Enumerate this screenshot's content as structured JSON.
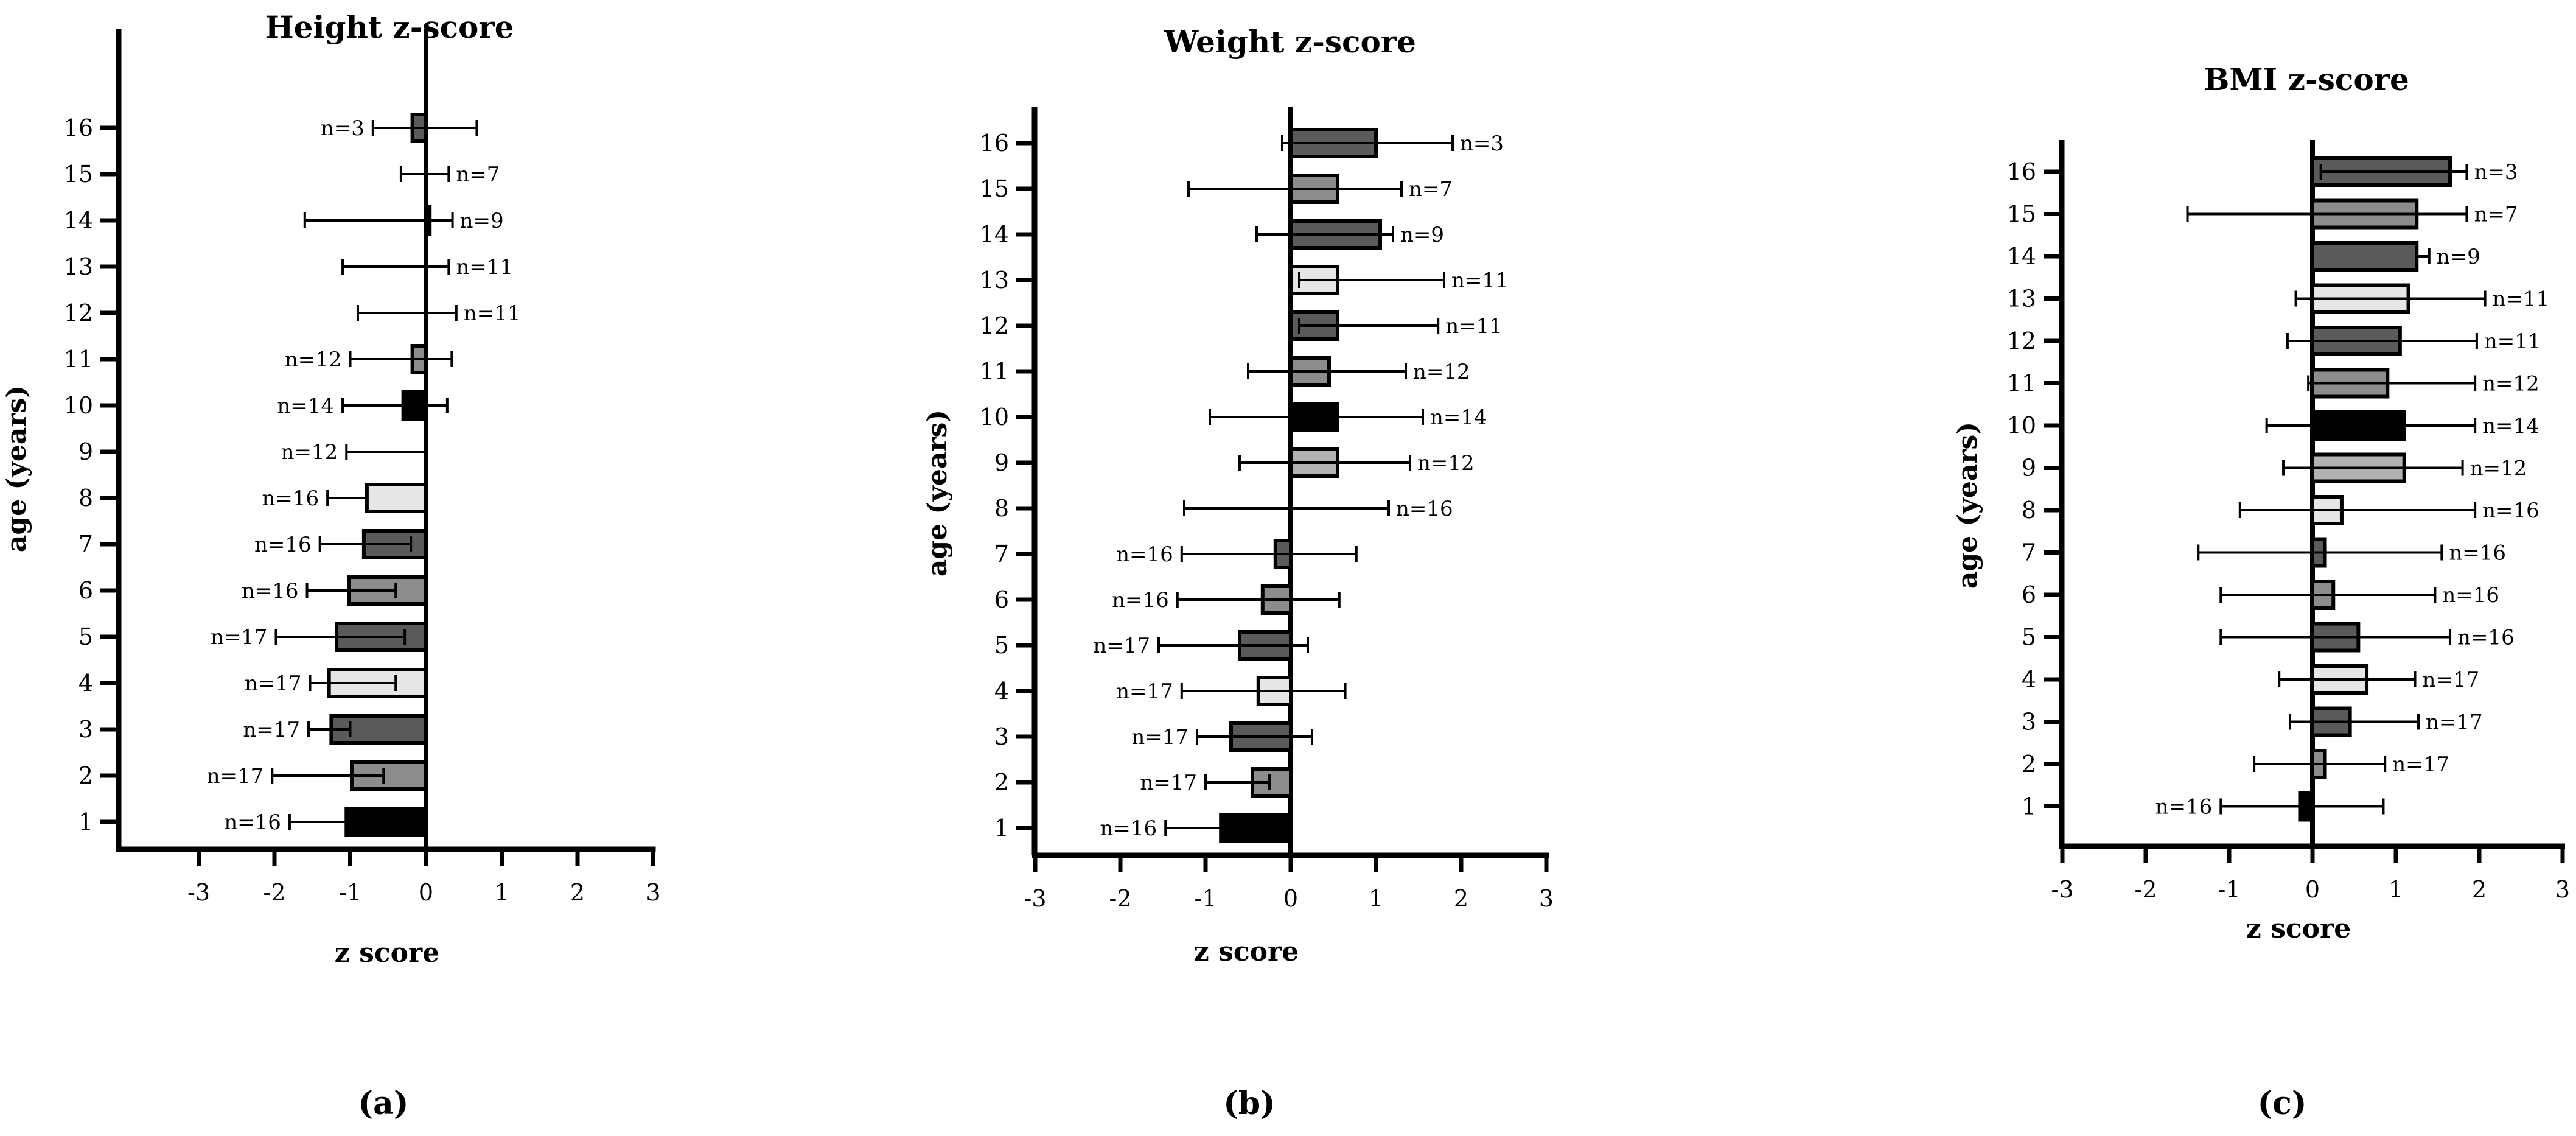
{
  "colors": {
    "black": "#000000",
    "dark": "#5a5a5a",
    "mid": "#8c8c8c",
    "light": "#b2b2b2",
    "verylight": "#e6e6e6",
    "white": "#ffffff"
  },
  "chart_data": [
    {
      "type": "bar",
      "orientation": "horizontal",
      "title": "Height z-score",
      "xlabel": "z score",
      "ylabel": "age (years)",
      "panel_label": "(a)",
      "xlim": [
        -4,
        3
      ],
      "xticks": [
        "-3",
        "-2",
        "-1",
        "0",
        "1",
        "2",
        "3"
      ],
      "categories": [
        "1",
        "2",
        "3",
        "4",
        "5",
        "6",
        "7",
        "8",
        "9",
        "10",
        "11",
        "12",
        "13",
        "14",
        "15",
        "16"
      ],
      "values": [
        -1.05,
        -0.98,
        -1.25,
        -1.28,
        -1.18,
        -1.02,
        -0.82,
        -0.78,
        0.0,
        -0.3,
        -0.18,
        0.0,
        0.0,
        0.05,
        0.0,
        -0.18
      ],
      "err_low": [
        0.75,
        1.05,
        0.3,
        0.25,
        0.8,
        0.55,
        0.58,
        0.52,
        1.05,
        0.8,
        0.82,
        0.9,
        1.1,
        1.65,
        0.33,
        0.52
      ],
      "err_high": [
        0.0,
        0.42,
        0.25,
        0.88,
        0.9,
        0.62,
        0.62,
        0.0,
        0.0,
        0.58,
        0.52,
        0.4,
        0.3,
        0.3,
        0.3,
        0.85
      ],
      "n_labels": [
        "n=16",
        "n=17",
        "n=17",
        "n=17",
        "n=17",
        "n=16",
        "n=16",
        "n=16",
        "n=12",
        "n=14",
        "n=12",
        "n=11",
        "n=11",
        "n=9",
        "n=7",
        "n=3"
      ],
      "label_side": [
        "left",
        "left",
        "left",
        "left",
        "left",
        "left",
        "left",
        "left",
        "left",
        "left",
        "left",
        "right",
        "right",
        "right",
        "right",
        "left"
      ],
      "fills": [
        "black",
        "mid",
        "dark",
        "verylight",
        "dark",
        "mid",
        "dark",
        "verylight",
        "light",
        "black",
        "mid",
        "dark",
        "verylight",
        "dark",
        "mid",
        "dark"
      ]
    },
    {
      "type": "bar",
      "orientation": "horizontal",
      "title": "Weight z-score",
      "xlabel": "z score",
      "ylabel": "age (years)",
      "panel_label": "(b)",
      "xlim": [
        -3,
        3
      ],
      "xticks": [
        "-3",
        "-2",
        "-1",
        "0",
        "1",
        "2",
        "3"
      ],
      "categories": [
        "1",
        "2",
        "3",
        "4",
        "5",
        "6",
        "7",
        "8",
        "9",
        "10",
        "11",
        "12",
        "13",
        "14",
        "15",
        "16"
      ],
      "values": [
        -0.82,
        -0.45,
        -0.7,
        -0.38,
        -0.6,
        -0.33,
        -0.18,
        0.0,
        0.55,
        0.55,
        0.45,
        0.55,
        0.55,
        1.05,
        0.55,
        1.0
      ],
      "err_low": [
        0.65,
        0.55,
        0.4,
        0.9,
        0.95,
        1.0,
        1.1,
        1.25,
        1.15,
        1.5,
        0.95,
        0.45,
        0.45,
        1.45,
        1.75,
        1.1
      ],
      "err_high": [
        0.0,
        0.2,
        0.95,
        1.02,
        0.8,
        0.9,
        0.95,
        1.15,
        0.85,
        1.0,
        0.9,
        1.18,
        1.25,
        0.15,
        0.75,
        0.9
      ],
      "n_labels": [
        "n=16",
        "n=17",
        "n=17",
        "n=17",
        "n=17",
        "n=16",
        "n=16",
        "n=16",
        "n=12",
        "n=14",
        "n=12",
        "n=11",
        "n=11",
        "n=9",
        "n=7",
        "n=3"
      ],
      "label_side": [
        "left",
        "left",
        "left",
        "left",
        "left",
        "left",
        "left",
        "right",
        "right",
        "right",
        "right",
        "right",
        "right",
        "right",
        "right",
        "right"
      ],
      "fills": [
        "black",
        "mid",
        "dark",
        "verylight",
        "dark",
        "mid",
        "dark",
        "verylight",
        "light",
        "black",
        "mid",
        "dark",
        "verylight",
        "dark",
        "mid",
        "dark"
      ]
    },
    {
      "type": "bar",
      "orientation": "horizontal",
      "title": "BMI z-score",
      "xlabel": "z score",
      "ylabel": "age (years)",
      "panel_label": "(c)",
      "xlim": [
        -3,
        3
      ],
      "xticks": [
        "-3",
        "-2",
        "-1",
        "0",
        "1",
        "2",
        "3"
      ],
      "categories": [
        "1",
        "2",
        "3",
        "4",
        "5",
        "6",
        "7",
        "8",
        "9",
        "10",
        "11",
        "12",
        "13",
        "14",
        "15",
        "16"
      ],
      "values": [
        -0.15,
        0.15,
        0.45,
        0.65,
        0.55,
        0.25,
        0.15,
        0.35,
        1.1,
        1.1,
        0.9,
        1.05,
        1.15,
        1.25,
        1.25,
        1.65
      ],
      "err_low": [
        0.95,
        0.85,
        0.72,
        1.05,
        1.65,
        1.35,
        1.52,
        1.22,
        1.45,
        1.65,
        0.95,
        1.35,
        1.35,
        0.0,
        2.75,
        1.55
      ],
      "err_high": [
        1.0,
        0.72,
        0.82,
        0.58,
        1.1,
        1.22,
        1.4,
        1.6,
        0.7,
        0.85,
        1.05,
        0.92,
        0.92,
        0.15,
        0.6,
        0.2
      ],
      "n_labels": [
        "n=16",
        "n=17",
        "n=17",
        "n=17",
        "n=16",
        "n=16",
        "n=16",
        "n=16",
        "n=12",
        "n=14",
        "n=12",
        "n=11",
        "n=11",
        "n=9",
        "n=7",
        "n=3"
      ],
      "label_side": [
        "left",
        "right",
        "right",
        "right",
        "right",
        "right",
        "right",
        "right",
        "right",
        "right",
        "right",
        "right",
        "right",
        "right",
        "right",
        "right"
      ],
      "fills": [
        "black",
        "mid",
        "dark",
        "verylight",
        "dark",
        "mid",
        "dark",
        "verylight",
        "light",
        "black",
        "mid",
        "dark",
        "verylight",
        "dark",
        "mid",
        "dark"
      ]
    }
  ]
}
